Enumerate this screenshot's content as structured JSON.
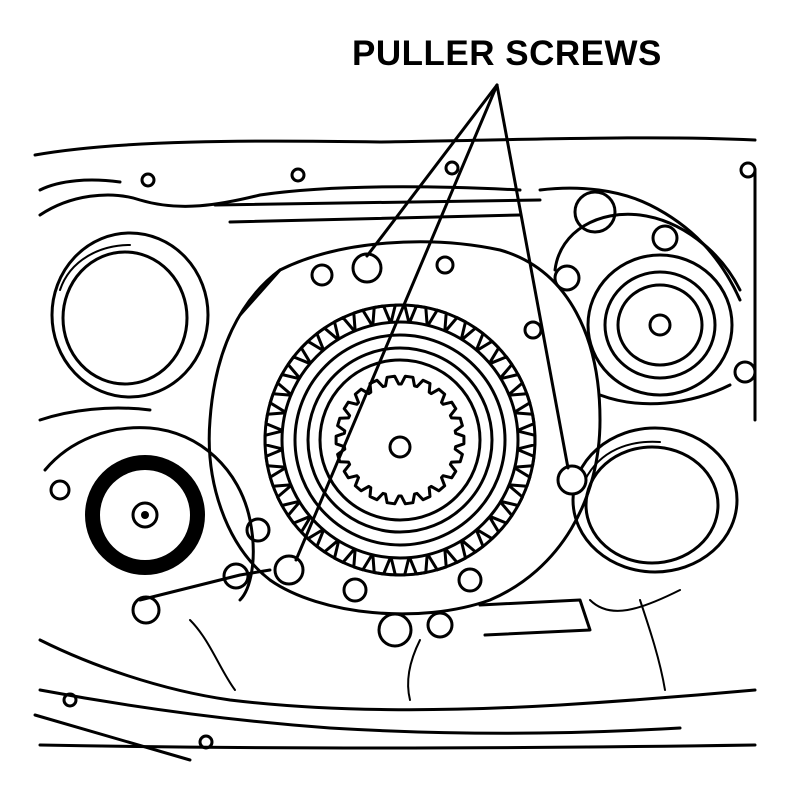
{
  "callout": {
    "label": "PULLER SCREWS"
  },
  "colors": {
    "ink": "#000000",
    "paper": "#ffffff"
  }
}
